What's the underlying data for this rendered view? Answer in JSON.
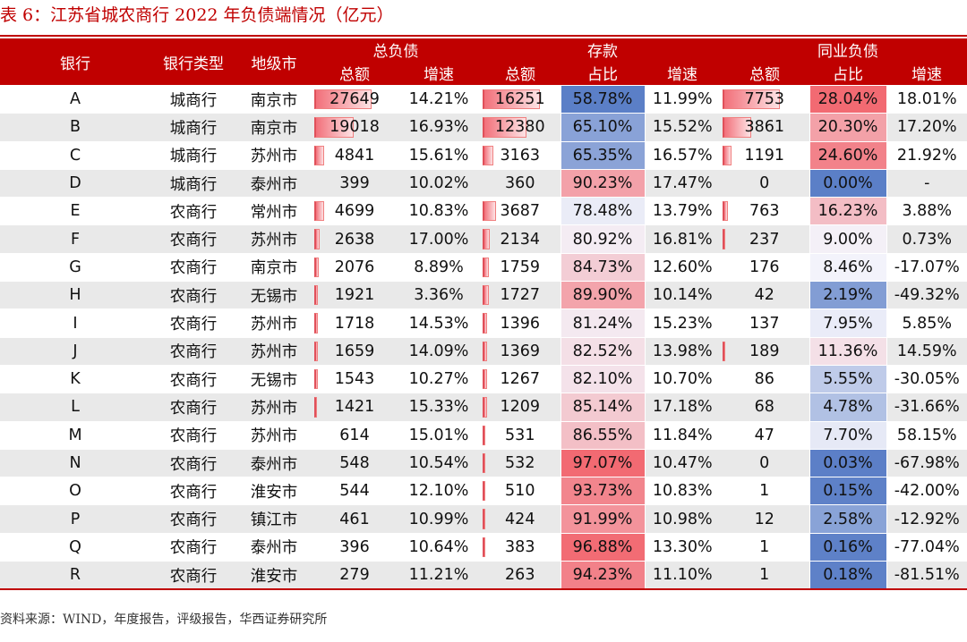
{
  "title": "表 6：江苏省城农商行 2022 年负债端情况（亿元）",
  "header": {
    "bank": "银行",
    "bank_type": "银行类型",
    "region": "地级市",
    "group_total_liab": "总负债",
    "group_deposit": "存款",
    "group_interbank": "同业负债",
    "total": "总额",
    "growth": "增速",
    "share": "占比"
  },
  "colors": {
    "header_bg": "#c00000",
    "bar_red": "#f2707a",
    "heat_blue": "#5b7fc7",
    "heat_red": "#f26a72"
  },
  "rows": [
    {
      "bank": "A",
      "type": "城商行",
      "city": "南京市",
      "tl_total": "27649",
      "tl_growth": "14.21%",
      "dep_total": "16251",
      "dep_share": "58.78%",
      "dep_growth": "11.99%",
      "ib_total": "7753",
      "ib_share": "28.04%",
      "ib_growth": "18.01%"
    },
    {
      "bank": "B",
      "type": "城商行",
      "city": "南京市",
      "tl_total": "19018",
      "tl_growth": "16.93%",
      "dep_total": "12380",
      "dep_share": "65.10%",
      "dep_growth": "15.52%",
      "ib_total": "3861",
      "ib_share": "20.30%",
      "ib_growth": "17.20%"
    },
    {
      "bank": "C",
      "type": "城商行",
      "city": "苏州市",
      "tl_total": "4841",
      "tl_growth": "15.61%",
      "dep_total": "3163",
      "dep_share": "65.35%",
      "dep_growth": "16.57%",
      "ib_total": "1191",
      "ib_share": "24.60%",
      "ib_growth": "21.92%"
    },
    {
      "bank": "D",
      "type": "城商行",
      "city": "泰州市",
      "tl_total": "399",
      "tl_growth": "10.02%",
      "dep_total": "360",
      "dep_share": "90.23%",
      "dep_growth": "17.47%",
      "ib_total": "0",
      "ib_share": "0.00%",
      "ib_growth": "-"
    },
    {
      "bank": "E",
      "type": "农商行",
      "city": "常州市",
      "tl_total": "4699",
      "tl_growth": "10.83%",
      "dep_total": "3687",
      "dep_share": "78.48%",
      "dep_growth": "13.79%",
      "ib_total": "763",
      "ib_share": "16.23%",
      "ib_growth": "3.88%"
    },
    {
      "bank": "F",
      "type": "农商行",
      "city": "苏州市",
      "tl_total": "2638",
      "tl_growth": "17.00%",
      "dep_total": "2134",
      "dep_share": "80.92%",
      "dep_growth": "16.81%",
      "ib_total": "237",
      "ib_share": "9.00%",
      "ib_growth": "0.73%"
    },
    {
      "bank": "G",
      "type": "农商行",
      "city": "南京市",
      "tl_total": "2076",
      "tl_growth": "8.89%",
      "dep_total": "1759",
      "dep_share": "84.73%",
      "dep_growth": "12.60%",
      "ib_total": "176",
      "ib_share": "8.46%",
      "ib_growth": "-17.07%"
    },
    {
      "bank": "H",
      "type": "农商行",
      "city": "无锡市",
      "tl_total": "1921",
      "tl_growth": "3.36%",
      "dep_total": "1727",
      "dep_share": "89.90%",
      "dep_growth": "10.14%",
      "ib_total": "42",
      "ib_share": "2.19%",
      "ib_growth": "-49.32%"
    },
    {
      "bank": "I",
      "type": "农商行",
      "city": "苏州市",
      "tl_total": "1718",
      "tl_growth": "14.53%",
      "dep_total": "1396",
      "dep_share": "81.24%",
      "dep_growth": "15.23%",
      "ib_total": "137",
      "ib_share": "7.95%",
      "ib_growth": "5.85%"
    },
    {
      "bank": "J",
      "type": "农商行",
      "city": "苏州市",
      "tl_total": "1659",
      "tl_growth": "14.09%",
      "dep_total": "1369",
      "dep_share": "82.52%",
      "dep_growth": "13.98%",
      "ib_total": "189",
      "ib_share": "11.36%",
      "ib_growth": "14.59%"
    },
    {
      "bank": "K",
      "type": "农商行",
      "city": "无锡市",
      "tl_total": "1543",
      "tl_growth": "10.27%",
      "dep_total": "1267",
      "dep_share": "82.10%",
      "dep_growth": "10.70%",
      "ib_total": "86",
      "ib_share": "5.55%",
      "ib_growth": "-30.05%"
    },
    {
      "bank": "L",
      "type": "农商行",
      "city": "苏州市",
      "tl_total": "1421",
      "tl_growth": "15.33%",
      "dep_total": "1209",
      "dep_share": "85.14%",
      "dep_growth": "17.18%",
      "ib_total": "68",
      "ib_share": "4.78%",
      "ib_growth": "-31.66%"
    },
    {
      "bank": "M",
      "type": "农商行",
      "city": "苏州市",
      "tl_total": "614",
      "tl_growth": "15.01%",
      "dep_total": "531",
      "dep_share": "86.55%",
      "dep_growth": "11.84%",
      "ib_total": "47",
      "ib_share": "7.70%",
      "ib_growth": "58.15%"
    },
    {
      "bank": "N",
      "type": "农商行",
      "city": "泰州市",
      "tl_total": "548",
      "tl_growth": "10.54%",
      "dep_total": "532",
      "dep_share": "97.07%",
      "dep_growth": "10.47%",
      "ib_total": "0",
      "ib_share": "0.03%",
      "ib_growth": "-67.98%"
    },
    {
      "bank": "O",
      "type": "农商行",
      "city": "淮安市",
      "tl_total": "544",
      "tl_growth": "12.10%",
      "dep_total": "510",
      "dep_share": "93.73%",
      "dep_growth": "10.83%",
      "ib_total": "1",
      "ib_share": "0.15%",
      "ib_growth": "-42.00%"
    },
    {
      "bank": "P",
      "type": "农商行",
      "city": "镇江市",
      "tl_total": "461",
      "tl_growth": "10.99%",
      "dep_total": "424",
      "dep_share": "91.99%",
      "dep_growth": "10.98%",
      "ib_total": "12",
      "ib_share": "2.58%",
      "ib_growth": "-12.92%"
    },
    {
      "bank": "Q",
      "type": "农商行",
      "city": "泰州市",
      "tl_total": "396",
      "tl_growth": "10.64%",
      "dep_total": "383",
      "dep_share": "96.88%",
      "dep_growth": "13.30%",
      "ib_total": "1",
      "ib_share": "0.16%",
      "ib_growth": "-77.04%"
    },
    {
      "bank": "R",
      "type": "农商行",
      "city": "淮安市",
      "tl_total": "279",
      "tl_growth": "11.21%",
      "dep_total": "263",
      "dep_share": "94.23%",
      "dep_growth": "11.10%",
      "ib_total": "1",
      "ib_share": "0.18%",
      "ib_growth": "-81.51%"
    }
  ],
  "source": "资料来源：WIND，年度报告，评级报告，华西证券研究所"
}
